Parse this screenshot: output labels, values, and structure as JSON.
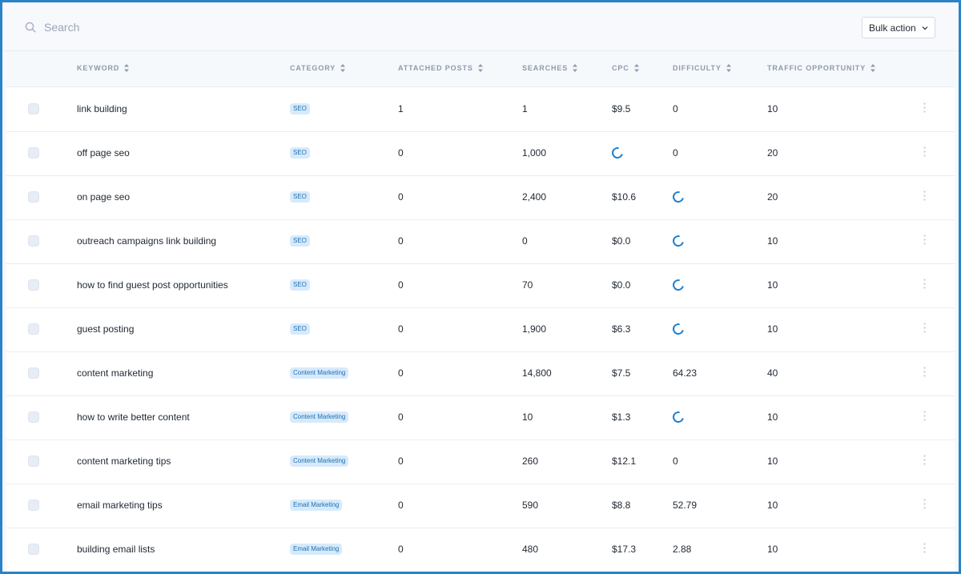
{
  "search": {
    "placeholder": "Search"
  },
  "toolbar": {
    "bulk_action_label": "Bulk action"
  },
  "columns": {
    "keyword": "KEYWORD",
    "category": "CATEGORY",
    "attached_posts": "ATTACHED POSTS",
    "searches": "SEARCHES",
    "cpc": "CPC",
    "difficulty": "DIFFICULTY",
    "traffic_opportunity": "TRAFFIC OPPORTUNITY"
  },
  "rows": [
    {
      "keyword": "link building",
      "category": "SEO",
      "attached_posts": "1",
      "searches": "1",
      "cpc": "$9.5",
      "difficulty": "0",
      "traffic_opportunity": "10"
    },
    {
      "keyword": "off page seo",
      "category": "SEO",
      "attached_posts": "0",
      "searches": "1,000",
      "cpc": null,
      "difficulty": "0",
      "traffic_opportunity": "20"
    },
    {
      "keyword": "on page seo",
      "category": "SEO",
      "attached_posts": "0",
      "searches": "2,400",
      "cpc": "$10.6",
      "difficulty": null,
      "traffic_opportunity": "20"
    },
    {
      "keyword": "outreach campaigns link building",
      "category": "SEO",
      "attached_posts": "0",
      "searches": "0",
      "cpc": "$0.0",
      "difficulty": null,
      "traffic_opportunity": "10"
    },
    {
      "keyword": "how to find guest post opportunities",
      "category": "SEO",
      "attached_posts": "0",
      "searches": "70",
      "cpc": "$0.0",
      "difficulty": null,
      "traffic_opportunity": "10"
    },
    {
      "keyword": "guest posting",
      "category": "SEO",
      "attached_posts": "0",
      "searches": "1,900",
      "cpc": "$6.3",
      "difficulty": null,
      "traffic_opportunity": "10"
    },
    {
      "keyword": "content marketing",
      "category": "Content Marketing",
      "attached_posts": "0",
      "searches": "14,800",
      "cpc": "$7.5",
      "difficulty": "64.23",
      "traffic_opportunity": "40"
    },
    {
      "keyword": "how to write better content",
      "category": "Content Marketing",
      "attached_posts": "0",
      "searches": "10",
      "cpc": "$1.3",
      "difficulty": null,
      "traffic_opportunity": "10"
    },
    {
      "keyword": "content marketing tips",
      "category": "Content Marketing",
      "attached_posts": "0",
      "searches": "260",
      "cpc": "$12.1",
      "difficulty": "0",
      "traffic_opportunity": "10"
    },
    {
      "keyword": "email marketing tips",
      "category": "Email Marketing",
      "attached_posts": "0",
      "searches": "590",
      "cpc": "$8.8",
      "difficulty": "52.79",
      "traffic_opportunity": "10"
    },
    {
      "keyword": "building email lists",
      "category": "Email Marketing",
      "attached_posts": "0",
      "searches": "480",
      "cpc": "$17.3",
      "difficulty": "2.88",
      "traffic_opportunity": "10"
    }
  ],
  "colors": {
    "accent": "#1a7fd1",
    "frame": "#2a83c6",
    "tag_bg": "#d6eafb",
    "tag_text": "#1f6fb2"
  },
  "icons": {
    "search": "search-icon",
    "dropdown": "chevron-down-icon",
    "sort": "sort-icon",
    "loading": "loading-spinner-icon",
    "row_menu": "more-vertical-icon"
  }
}
